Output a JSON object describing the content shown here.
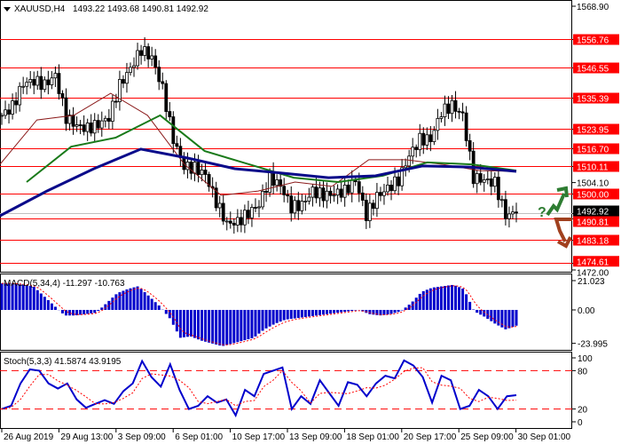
{
  "header": {
    "symbol": "XAUUSD,H4",
    "ohlc": "1493.22 1493.68 1490.81 1492.92"
  },
  "colors": {
    "level": "#ff0000",
    "ma_fast": "#8b1a1a",
    "ma_mid": "#1a7a1a",
    "ma_slow": "#0a0a8a",
    "macd": "#0000cc",
    "stoch": "#0000cc",
    "signal": "#ff0000",
    "arrow_up": "#2e7d32",
    "arrow_down": "#a0401e"
  },
  "chart_data": [
    {
      "type": "candlestick",
      "ylim": [
        1472.0,
        1568.9
      ],
      "y_ticks": [
        "1568.90",
        "1504.10",
        "1472.00"
      ],
      "levels": [
        "1556.76",
        "1546.55",
        "1535.39",
        "1523.95",
        "1516.70",
        "1510.11",
        "1500.00",
        "1490.81",
        "1483.18",
        "1474.61"
      ],
      "current_price": "1492.92",
      "closes": [
        1528.8,
        1532,
        1540.5,
        1541.5,
        1540,
        1543.5,
        1528,
        1525,
        1524,
        1525.5,
        1528,
        1540,
        1546,
        1553,
        1550,
        1538.6,
        1520,
        1510,
        1509.5,
        1507,
        1497,
        1489,
        1489.6,
        1492.9,
        1496,
        1505.9,
        1503,
        1495,
        1496,
        1501,
        1499.4,
        1500,
        1501,
        1505,
        1492,
        1499,
        1502,
        1505,
        1514,
        1520,
        1520,
        1530,
        1532.5,
        1528.8,
        1505.9,
        1505,
        1504,
        1492,
        1492.92
      ],
      "ma_fast": [
        1510.8,
        1527.1,
        1528.8,
        1536.9,
        1528.8,
        1510.8,
        1499.4,
        1501,
        1504.3,
        1502.7,
        1512.5,
        1512.5,
        1510.8,
        1508.5,
        1508.2
      ],
      "ma_mid": [
        1504.3,
        1517.3,
        1520.6,
        1528.8,
        1515.7,
        1510.8,
        1505.9,
        1504.3,
        1506.6,
        1511.5,
        1510.8,
        1508.5
      ],
      "ma_slow": [
        1491.9,
        1501,
        1509.2,
        1516.4,
        1513.1,
        1509.2,
        1507.6,
        1505.9,
        1506.6,
        1510.2,
        1509.8,
        1508.2
      ],
      "x_labels": [
        "26 Aug 2019",
        "29 Aug 13:00",
        "3 Sep 09:00",
        "6 Sep 01:00",
        "10 Sep 17:00",
        "13 Sep 09:00",
        "18 Sep 01:00",
        "20 Sep 17:00",
        "25 Sep 09:00",
        "30 Sep 01:00"
      ]
    },
    {
      "type": "bar",
      "title": "MACD(5,34,4) -11.297 -10.763",
      "ylim": [
        -23.995,
        21.023
      ],
      "y_ticks": [
        "21.023",
        "0.00",
        "-23.995"
      ],
      "values": [
        19,
        19,
        18,
        17,
        10,
        3,
        -4,
        -4,
        -3,
        -2,
        5,
        12,
        15,
        17,
        10,
        3,
        -6,
        -20,
        -19,
        -22,
        -24,
        -26,
        -24,
        -22,
        -20,
        -14,
        -10,
        -7,
        -6,
        -5,
        -4,
        -3,
        -2,
        -1,
        0,
        -3,
        -4,
        -3,
        -1,
        5,
        13,
        16,
        17,
        18,
        15,
        -1,
        -5,
        -10,
        -14,
        -11.3
      ]
    },
    {
      "type": "line",
      "title": "Stoch(5,3,3) 41.5874 43.9195",
      "ylim": [
        0,
        100
      ],
      "y_ticks": [
        "100",
        "80",
        "20",
        "0"
      ],
      "levels": [
        80,
        20
      ],
      "values": [
        20,
        25,
        60,
        82,
        80,
        60,
        52,
        60,
        35,
        22,
        28,
        34,
        28,
        48,
        60,
        95,
        70,
        55,
        90,
        50,
        20,
        25,
        40,
        30,
        35,
        10,
        50,
        40,
        75,
        80,
        85,
        20,
        40,
        28,
        65,
        45,
        25,
        62,
        58,
        40,
        60,
        72,
        68,
        96,
        88,
        70,
        30,
        72,
        65,
        20,
        25,
        50,
        40,
        20,
        40,
        41.6
      ]
    }
  ]
}
